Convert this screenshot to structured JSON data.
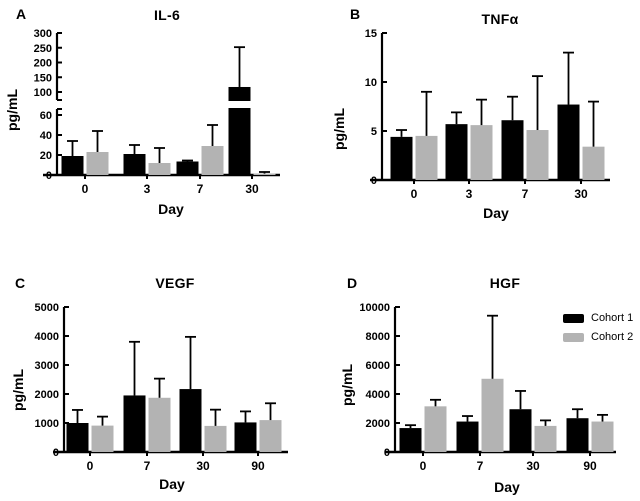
{
  "legend": {
    "position": "top-right-of-panel-D",
    "entries": [
      {
        "label": "Cohort 1",
        "color": "#000000"
      },
      {
        "label": "Cohort 2",
        "color": "#b3b3b3"
      }
    ]
  },
  "chart_data": [
    {
      "type": "bar",
      "panel_label": "A",
      "title": "IL-6",
      "xlabel": "Day",
      "ylabel": "pg/mL",
      "categories": [
        "0",
        "3",
        "7",
        "30"
      ],
      "series": [
        {
          "name": "Cohort 1",
          "color": "#000000",
          "values": [
            19,
            21,
            13.5,
            117
          ],
          "error_upper": [
            34,
            30,
            14.5,
            252
          ]
        },
        {
          "name": "Cohort 2",
          "color": "#b3b3b3",
          "values": [
            23,
            12,
            29,
            1.5
          ],
          "error_upper": [
            44,
            27,
            50,
            3
          ]
        }
      ],
      "ylim": [
        0,
        300
      ],
      "axis_break": {
        "lower_ticks": [
          0,
          20,
          40,
          60
        ],
        "upper_ticks": [
          100,
          150,
          200,
          250,
          300
        ],
        "lower_segment_max": 66,
        "upper_segment_min": 100
      },
      "error_bars": "upper",
      "grid": false
    },
    {
      "type": "bar",
      "panel_label": "B",
      "title": "TNFα",
      "xlabel": "Day",
      "ylabel": "pg/mL",
      "categories": [
        "0",
        "3",
        "7",
        "30"
      ],
      "series": [
        {
          "name": "Cohort 1",
          "color": "#000000",
          "values": [
            4.4,
            5.7,
            6.1,
            7.7
          ],
          "error_upper": [
            5.1,
            6.9,
            8.5,
            13
          ]
        },
        {
          "name": "Cohort 2",
          "color": "#b3b3b3",
          "values": [
            4.5,
            5.6,
            5.1,
            3.4
          ],
          "error_upper": [
            9,
            8.2,
            10.6,
            8
          ]
        }
      ],
      "ylim": [
        0,
        15
      ],
      "yticks": [
        0,
        5,
        10,
        15
      ],
      "error_bars": "upper",
      "grid": false
    },
    {
      "type": "bar",
      "panel_label": "C",
      "title": "VEGF",
      "xlabel": "Day",
      "ylabel": "pg/mL",
      "categories": [
        "0",
        "7",
        "30",
        "90"
      ],
      "series": [
        {
          "name": "Cohort 1",
          "color": "#000000",
          "values": [
            1000,
            1950,
            2170,
            1020
          ],
          "error_upper": [
            1450,
            3800,
            3970,
            1400
          ]
        },
        {
          "name": "Cohort 2",
          "color": "#b3b3b3",
          "values": [
            910,
            1870,
            900,
            1100
          ],
          "error_upper": [
            1220,
            2530,
            1460,
            1680
          ]
        }
      ],
      "ylim": [
        0,
        5000
      ],
      "yticks": [
        0,
        1000,
        2000,
        3000,
        4000,
        5000
      ],
      "error_bars": "upper",
      "grid": false
    },
    {
      "type": "bar",
      "panel_label": "D",
      "title": "HGF",
      "xlabel": "Day",
      "ylabel": "pg/mL",
      "categories": [
        "0",
        "7",
        "30",
        "90"
      ],
      "series": [
        {
          "name": "Cohort 1",
          "color": "#000000",
          "values": [
            1650,
            2100,
            2950,
            2330
          ],
          "error_upper": [
            1850,
            2480,
            4210,
            2950
          ]
        },
        {
          "name": "Cohort 2",
          "color": "#b3b3b3",
          "values": [
            3150,
            5050,
            1800,
            2100
          ],
          "error_upper": [
            3600,
            9400,
            2180,
            2560
          ]
        }
      ],
      "ylim": [
        0,
        10000
      ],
      "yticks": [
        0,
        2000,
        4000,
        6000,
        8000,
        10000
      ],
      "legend_position": "top-right",
      "error_bars": "upper",
      "grid": false
    }
  ]
}
